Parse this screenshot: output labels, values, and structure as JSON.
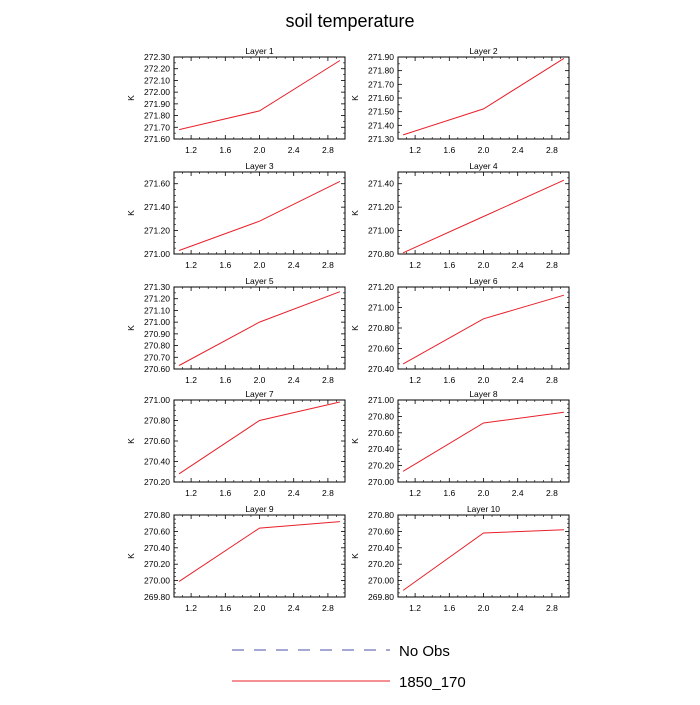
{
  "title": "soil temperature",
  "legend": {
    "items": [
      {
        "label": "No Obs",
        "style": "dashed",
        "color": "#4b4fa8"
      },
      {
        "label": "1850_170",
        "style": "solid",
        "color": "#e8202a"
      }
    ]
  },
  "chart_data": [
    {
      "type": "line",
      "title": "Layer 1",
      "ylabel": "K",
      "xlabel": "",
      "xlim": [
        1.0,
        3.0
      ],
      "ylim": [
        271.6,
        272.3
      ],
      "x_ticks": [
        1.2,
        1.6,
        2.0,
        2.4,
        2.8
      ],
      "y_ticks": [
        271.6,
        271.7,
        271.8,
        271.9,
        272.0,
        272.1,
        272.2,
        272.3
      ],
      "series": [
        {
          "name": "1850_170",
          "color": "#e8202a",
          "x": [
            1.06,
            2.0,
            2.94
          ],
          "y": [
            271.68,
            271.84,
            272.27
          ]
        }
      ]
    },
    {
      "type": "line",
      "title": "Layer 2",
      "ylabel": "K",
      "xlabel": "",
      "xlim": [
        1.0,
        3.0
      ],
      "ylim": [
        271.3,
        271.9
      ],
      "x_ticks": [
        1.2,
        1.6,
        2.0,
        2.4,
        2.8
      ],
      "y_ticks": [
        271.3,
        271.4,
        271.5,
        271.6,
        271.7,
        271.8,
        271.9
      ],
      "series": [
        {
          "name": "1850_170",
          "color": "#e8202a",
          "x": [
            1.06,
            2.0,
            2.94
          ],
          "y": [
            271.33,
            271.52,
            271.89
          ]
        }
      ]
    },
    {
      "type": "line",
      "title": "Layer 3",
      "ylabel": "K",
      "xlabel": "",
      "xlim": [
        1.0,
        3.0
      ],
      "ylim": [
        271.0,
        271.7
      ],
      "x_ticks": [
        1.2,
        1.6,
        2.0,
        2.4,
        2.8
      ],
      "y_ticks": [
        271.0,
        271.2,
        271.4,
        271.6
      ],
      "series": [
        {
          "name": "1850_170",
          "color": "#e8202a",
          "x": [
            1.06,
            2.0,
            2.94
          ],
          "y": [
            271.03,
            271.28,
            271.62
          ]
        }
      ]
    },
    {
      "type": "line",
      "title": "Layer 4",
      "ylabel": "K",
      "xlabel": "",
      "xlim": [
        1.0,
        3.0
      ],
      "ylim": [
        270.8,
        271.5
      ],
      "x_ticks": [
        1.2,
        1.6,
        2.0,
        2.4,
        2.8
      ],
      "y_ticks": [
        270.8,
        271.0,
        271.2,
        271.4
      ],
      "series": [
        {
          "name": "1850_170",
          "color": "#e8202a",
          "x": [
            1.06,
            2.0,
            2.94
          ],
          "y": [
            270.81,
            271.12,
            271.43
          ]
        }
      ]
    },
    {
      "type": "line",
      "title": "Layer 5",
      "ylabel": "K",
      "xlabel": "",
      "xlim": [
        1.0,
        3.0
      ],
      "ylim": [
        270.6,
        271.3
      ],
      "x_ticks": [
        1.2,
        1.6,
        2.0,
        2.4,
        2.8
      ],
      "y_ticks": [
        270.6,
        270.7,
        270.8,
        270.9,
        271.0,
        271.1,
        271.2,
        271.3
      ],
      "series": [
        {
          "name": "1850_170",
          "color": "#e8202a",
          "x": [
            1.06,
            2.0,
            2.94
          ],
          "y": [
            270.63,
            271.0,
            271.26
          ]
        }
      ]
    },
    {
      "type": "line",
      "title": "Layer 6",
      "ylabel": "K",
      "xlabel": "",
      "xlim": [
        1.0,
        3.0
      ],
      "ylim": [
        270.4,
        271.2
      ],
      "x_ticks": [
        1.2,
        1.6,
        2.0,
        2.4,
        2.8
      ],
      "y_ticks": [
        270.4,
        270.6,
        270.8,
        271.0,
        271.2
      ],
      "series": [
        {
          "name": "1850_170",
          "color": "#e8202a",
          "x": [
            1.06,
            2.0,
            2.94
          ],
          "y": [
            270.45,
            270.89,
            271.12
          ]
        }
      ]
    },
    {
      "type": "line",
      "title": "Layer 7",
      "ylabel": "K",
      "xlabel": "",
      "xlim": [
        1.0,
        3.0
      ],
      "ylim": [
        270.2,
        271.0
      ],
      "x_ticks": [
        1.2,
        1.6,
        2.0,
        2.4,
        2.8
      ],
      "y_ticks": [
        270.2,
        270.4,
        270.6,
        270.8,
        271.0
      ],
      "series": [
        {
          "name": "1850_170",
          "color": "#e8202a",
          "x": [
            1.06,
            2.0,
            2.94
          ],
          "y": [
            270.28,
            270.8,
            270.98
          ]
        }
      ]
    },
    {
      "type": "line",
      "title": "Layer 8",
      "ylabel": "K",
      "xlabel": "",
      "xlim": [
        1.0,
        3.0
      ],
      "ylim": [
        270.0,
        271.0
      ],
      "x_ticks": [
        1.2,
        1.6,
        2.0,
        2.4,
        2.8
      ],
      "y_ticks": [
        270.0,
        270.2,
        270.4,
        270.6,
        270.8,
        271.0
      ],
      "series": [
        {
          "name": "1850_170",
          "color": "#e8202a",
          "x": [
            1.06,
            2.0,
            2.94
          ],
          "y": [
            270.13,
            270.72,
            270.85
          ]
        }
      ]
    },
    {
      "type": "line",
      "title": "Layer 9",
      "ylabel": "K",
      "xlabel": "",
      "xlim": [
        1.0,
        3.0
      ],
      "ylim": [
        269.8,
        270.8
      ],
      "x_ticks": [
        1.2,
        1.6,
        2.0,
        2.4,
        2.8
      ],
      "y_ticks": [
        269.8,
        270.0,
        270.2,
        270.4,
        270.6,
        270.8
      ],
      "series": [
        {
          "name": "1850_170",
          "color": "#e8202a",
          "x": [
            1.06,
            2.0,
            2.94
          ],
          "y": [
            269.99,
            270.64,
            270.72
          ]
        }
      ]
    },
    {
      "type": "line",
      "title": "Layer 10",
      "ylabel": "K",
      "xlabel": "",
      "xlim": [
        1.0,
        3.0
      ],
      "ylim": [
        269.8,
        270.8
      ],
      "x_ticks": [
        1.2,
        1.6,
        2.0,
        2.4,
        2.8
      ],
      "y_ticks": [
        269.8,
        270.0,
        270.2,
        270.4,
        270.6,
        270.8
      ],
      "series": [
        {
          "name": "1850_170",
          "color": "#e8202a",
          "x": [
            1.06,
            2.0,
            2.94
          ],
          "y": [
            269.88,
            270.58,
            270.62
          ]
        }
      ]
    }
  ]
}
